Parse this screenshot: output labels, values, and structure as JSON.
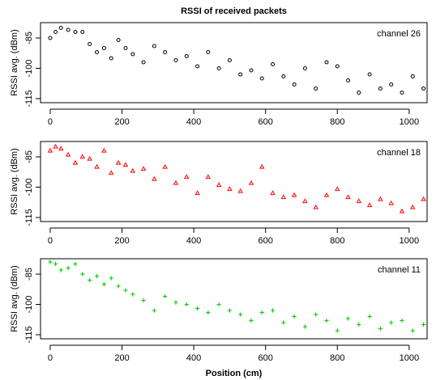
{
  "chart_data": [
    {
      "type": "scatter",
      "title": "RSSI of received packets",
      "ylabel": "RSSI avg. (dBm)",
      "annotation": "channel 26",
      "color": "#000000",
      "marker": "circle",
      "x": [
        0,
        15,
        30,
        50,
        70,
        90,
        110,
        130,
        150,
        170,
        190,
        210,
        230,
        260,
        290,
        320,
        350,
        380,
        410,
        440,
        470,
        500,
        530,
        560,
        590,
        620,
        650,
        680,
        710,
        740,
        770,
        800,
        830,
        860,
        890,
        920,
        950,
        980,
        1010,
        1040
      ],
      "values": [
        -85,
        -82,
        -80,
        -81,
        -82,
        -82,
        -88,
        -92,
        -90,
        -95,
        -86,
        -90,
        -93,
        -97,
        -89,
        -92,
        -96,
        -94,
        -99,
        -92,
        -100,
        -96,
        -103,
        -101,
        -105,
        -98,
        -104,
        -108,
        -100,
        -110,
        -97,
        -99,
        -106,
        -112,
        -103,
        -110,
        -108,
        -112,
        -104,
        -110
      ],
      "xlim": [
        -27,
        1050
      ],
      "ylim": [
        -117,
        -77.4
      ],
      "xticks": [
        0,
        200,
        400,
        600,
        800,
        1000
      ],
      "yticks": [
        -85,
        -100,
        -115
      ]
    },
    {
      "type": "scatter",
      "ylabel": "RSSI avg. (dBm)",
      "annotation": "channel 18",
      "color": "#ff0000",
      "marker": "triangle",
      "x": [
        0,
        15,
        30,
        50,
        70,
        90,
        110,
        130,
        150,
        170,
        190,
        210,
        230,
        260,
        290,
        320,
        350,
        380,
        410,
        440,
        470,
        500,
        530,
        560,
        590,
        620,
        650,
        680,
        710,
        740,
        770,
        800,
        830,
        860,
        890,
        920,
        950,
        980,
        1010,
        1040
      ],
      "values": [
        -82,
        -80,
        -81,
        -84,
        -88,
        -85,
        -86,
        -90,
        -82,
        -93,
        -88,
        -89,
        -92,
        -91,
        -96,
        -90,
        -98,
        -95,
        -103,
        -95,
        -99,
        -101,
        -102,
        -98,
        -90,
        -103,
        -105,
        -104,
        -107,
        -110,
        -104,
        -101,
        -105,
        -107,
        -109,
        -106,
        -108,
        -112,
        -110,
        -106
      ],
      "xlim": [
        -27,
        1050
      ],
      "ylim": [
        -117,
        -77.4
      ],
      "xticks": [
        0,
        200,
        400,
        600,
        800,
        1000
      ],
      "yticks": [
        -85,
        -100,
        -115
      ]
    },
    {
      "type": "scatter",
      "ylabel": "RSSI avg. (dBm)",
      "annotation": "channel 11",
      "xlabel": "Position (cm)",
      "color": "#00cc00",
      "marker": "plus",
      "x": [
        0,
        15,
        30,
        50,
        70,
        90,
        110,
        130,
        150,
        170,
        190,
        210,
        230,
        260,
        290,
        320,
        350,
        380,
        410,
        440,
        470,
        500,
        530,
        560,
        590,
        620,
        650,
        680,
        710,
        740,
        770,
        800,
        830,
        860,
        890,
        920,
        950,
        980,
        1010,
        1040
      ],
      "values": [
        -79,
        -80,
        -83,
        -82,
        -80,
        -85,
        -88,
        -86,
        -90,
        -87,
        -91,
        -93,
        -95,
        -98,
        -103,
        -96,
        -99,
        -100,
        -102,
        -104,
        -100,
        -103,
        -105,
        -108,
        -104,
        -103,
        -109,
        -106,
        -111,
        -105,
        -108,
        -113,
        -107,
        -110,
        -106,
        -112,
        -109,
        -108,
        -113,
        -110
      ],
      "xlim": [
        -27,
        1050
      ],
      "ylim": [
        -117,
        -77.4
      ],
      "xticks": [
        0,
        200,
        400,
        600,
        800,
        1000
      ],
      "yticks": [
        -85,
        -100,
        -115
      ]
    }
  ]
}
